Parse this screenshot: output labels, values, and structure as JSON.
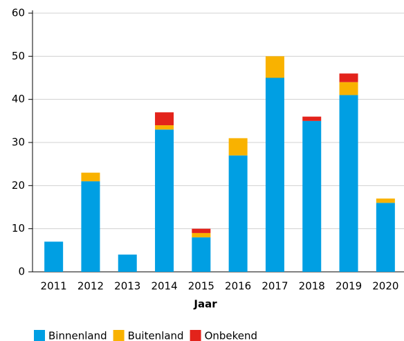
{
  "chart_data": {
    "type": "stacked_bar",
    "x_label": "Jaar",
    "categories": [
      "2011",
      "2012",
      "2013",
      "2014",
      "2015",
      "2016",
      "2017",
      "2018",
      "2019",
      "2020"
    ],
    "series": [
      {
        "name": "Binnenland",
        "color": "#009fe3",
        "values": [
          7,
          21,
          4,
          33,
          8,
          27,
          45,
          35,
          41,
          16
        ]
      },
      {
        "name": "Buitenland",
        "color": "#f9b200",
        "values": [
          0,
          2,
          0,
          1,
          1,
          4,
          5,
          0,
          3,
          1
        ]
      },
      {
        "name": "Onbekend",
        "color": "#e3231b",
        "values": [
          0,
          0,
          0,
          3,
          1,
          0,
          0,
          1,
          2,
          0
        ]
      }
    ],
    "ylim": [
      0,
      60
    ],
    "yticks": [
      0,
      10,
      20,
      30,
      40,
      50,
      60
    ],
    "grid": true,
    "legend": "bottom"
  }
}
